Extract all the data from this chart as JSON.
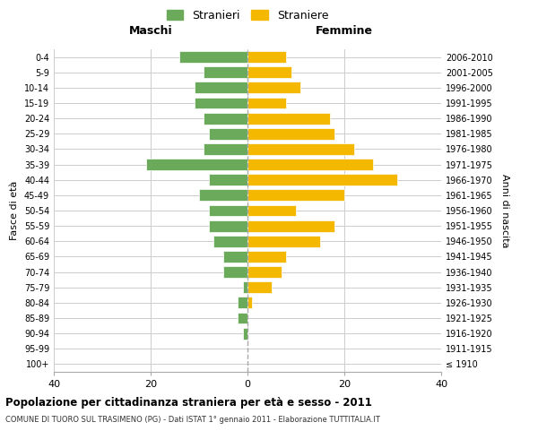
{
  "age_groups": [
    "100+",
    "95-99",
    "90-94",
    "85-89",
    "80-84",
    "75-79",
    "70-74",
    "65-69",
    "60-64",
    "55-59",
    "50-54",
    "45-49",
    "40-44",
    "35-39",
    "30-34",
    "25-29",
    "20-24",
    "15-19",
    "10-14",
    "5-9",
    "0-4"
  ],
  "birth_years": [
    "≤ 1910",
    "1911-1915",
    "1916-1920",
    "1921-1925",
    "1926-1930",
    "1931-1935",
    "1936-1940",
    "1941-1945",
    "1946-1950",
    "1951-1955",
    "1956-1960",
    "1961-1965",
    "1966-1970",
    "1971-1975",
    "1976-1980",
    "1981-1985",
    "1986-1990",
    "1991-1995",
    "1996-2000",
    "2001-2005",
    "2006-2010"
  ],
  "males": [
    0,
    0,
    1,
    2,
    2,
    1,
    5,
    5,
    7,
    8,
    8,
    10,
    8,
    21,
    9,
    8,
    9,
    11,
    11,
    9,
    14
  ],
  "females": [
    0,
    0,
    0,
    0,
    1,
    5,
    7,
    8,
    15,
    18,
    10,
    20,
    31,
    26,
    22,
    18,
    17,
    8,
    11,
    9,
    8
  ],
  "male_color": "#6aaa5a",
  "female_color": "#f5b800",
  "background_color": "#ffffff",
  "grid_color": "#cccccc",
  "center_line_color": "#aaaaaa",
  "xlim": 40,
  "title_main": "Popolazione per cittadinanza straniera per età e sesso - 2011",
  "title_sub": "COMUNE DI TUORO SUL TRASIMENO (PG) - Dati ISTAT 1° gennaio 2011 - Elaborazione TUTTITALIA.IT",
  "xlabel_left": "Maschi",
  "xlabel_right": "Femmine",
  "ylabel_left": "Fasce di età",
  "ylabel_right": "Anni di nascita",
  "legend_male": "Stranieri",
  "legend_female": "Straniere"
}
